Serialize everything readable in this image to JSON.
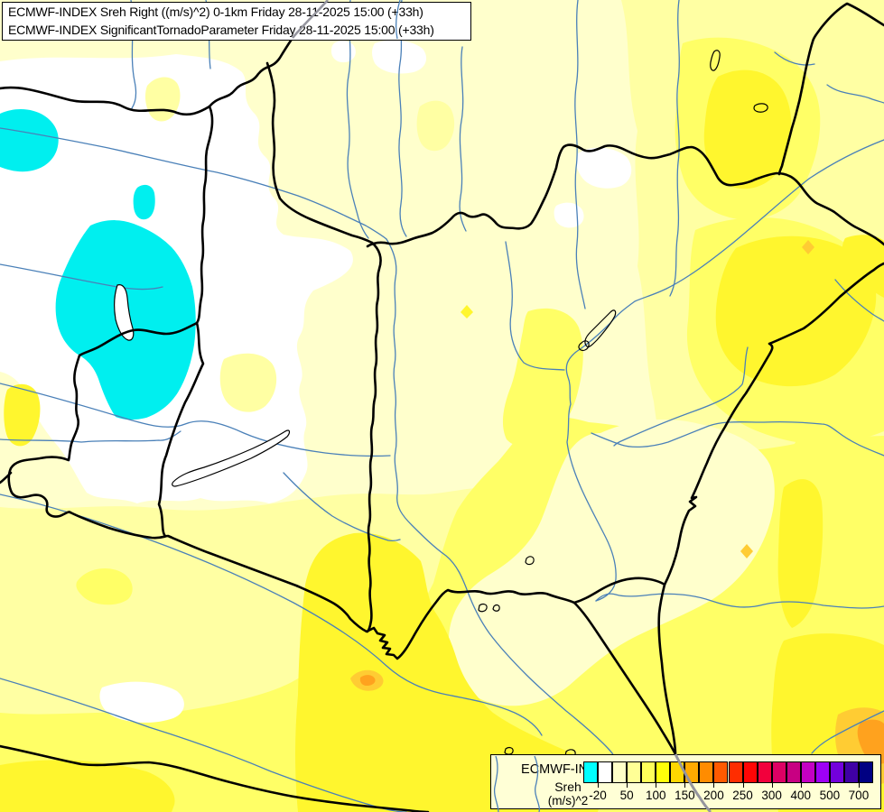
{
  "title_box": {
    "line1": "ECMWF-INDEX Sreh Right ((m/s)^2) 0-1km Friday 28-11-2025 15:00 (+33h)",
    "line2": "ECMWF-INDEX SignificantTornadoParameter Friday 28-11-2025 15:00 (+33h)"
  },
  "legend": {
    "title": "ECMWF-INDEX",
    "parameter": "Sreh",
    "units": "(m/s)^2",
    "cells": [
      "#00FFFF",
      "#FFFFFF",
      "#FFFFC8",
      "#FFFF96",
      "#FFFF5A",
      "#FFFF0A",
      "#FFD700",
      "#FFAA00",
      "#FF8C00",
      "#FF5A00",
      "#FF2D00",
      "#FF0505",
      "#F2003C",
      "#DD0064",
      "#C80082",
      "#C300C3",
      "#9E00F5",
      "#7300DC",
      "#3F00A5",
      "#000082"
    ],
    "ticks": [
      {
        "label": "-20",
        "boundary": 1
      },
      {
        "label": "50",
        "boundary": 3
      },
      {
        "label": "100",
        "boundary": 5
      },
      {
        "label": "150",
        "boundary": 7
      },
      {
        "label": "200",
        "boundary": 9
      },
      {
        "label": "250",
        "boundary": 11
      },
      {
        "label": "300",
        "boundary": 13
      },
      {
        "label": "400",
        "boundary": 15
      },
      {
        "label": "500",
        "boundary": 17
      },
      {
        "label": "700",
        "boundary": 19
      }
    ]
  },
  "map": {
    "palette": {
      "base_cream": "#FFFFCC",
      "pale_yellow": "#FFFFA3",
      "mid_yellow": "#FFFF66",
      "bright_yellow": "#FFF62E",
      "gold": "#FFCC33",
      "orange": "#FFA21E",
      "negative_cyan": "#00EFEF",
      "river_blue": "#4A80B8",
      "border_black": "#000000",
      "overlay_gray": "#95959E"
    }
  }
}
